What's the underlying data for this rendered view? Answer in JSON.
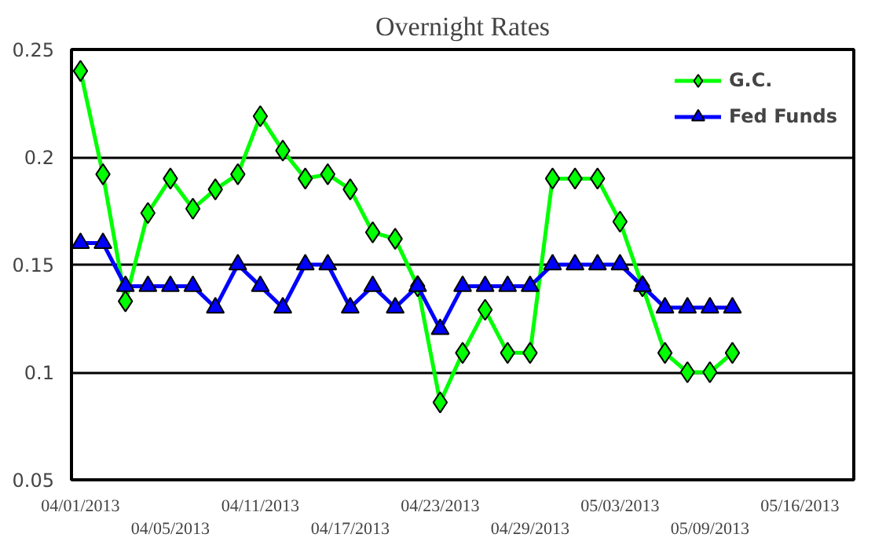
{
  "chart_data": {
    "type": "line",
    "title": "Overnight Rates",
    "categories": [
      "04/01/2013",
      null,
      null,
      null,
      "04/05/2013",
      null,
      null,
      null,
      "04/11/2013",
      null,
      null,
      null,
      "04/17/2013",
      null,
      null,
      null,
      "04/23/2013",
      null,
      null,
      null,
      "04/29/2013",
      null,
      null,
      null,
      "05/03/2013",
      null,
      null,
      null,
      "05/09/2013",
      null,
      null,
      null,
      "05/16/2013",
      null,
      null
    ],
    "series": [
      {
        "name": "G.C.",
        "color": "#00ff00",
        "marker": "diamond",
        "values": [
          0.24,
          0.192,
          0.133,
          0.174,
          0.19,
          0.176,
          0.185,
          0.192,
          0.219,
          0.203,
          0.19,
          0.192,
          0.185,
          0.165,
          0.162,
          0.14,
          0.086,
          0.109,
          0.129,
          0.109,
          0.109,
          0.19,
          0.19,
          0.19,
          0.17,
          0.14,
          0.109,
          0.1,
          0.1,
          0.109,
          null,
          null,
          null,
          null,
          null
        ]
      },
      {
        "name": "Fed Funds",
        "color": "#0000ff",
        "marker": "triangle",
        "values": [
          0.16,
          0.16,
          0.14,
          0.14,
          0.14,
          0.14,
          0.13,
          0.15,
          0.14,
          0.13,
          0.15,
          0.15,
          0.13,
          0.14,
          0.13,
          0.14,
          0.12,
          0.14,
          0.14,
          0.14,
          0.14,
          0.15,
          0.15,
          0.15,
          0.15,
          0.14,
          0.13,
          0.13,
          0.13,
          0.13,
          null,
          null,
          null,
          null,
          null
        ]
      }
    ],
    "ylim": [
      0.05,
      0.25
    ],
    "yticks": [
      0.05,
      0.1,
      0.15,
      0.2,
      0.25
    ],
    "grid": "y",
    "legend": "top right"
  }
}
